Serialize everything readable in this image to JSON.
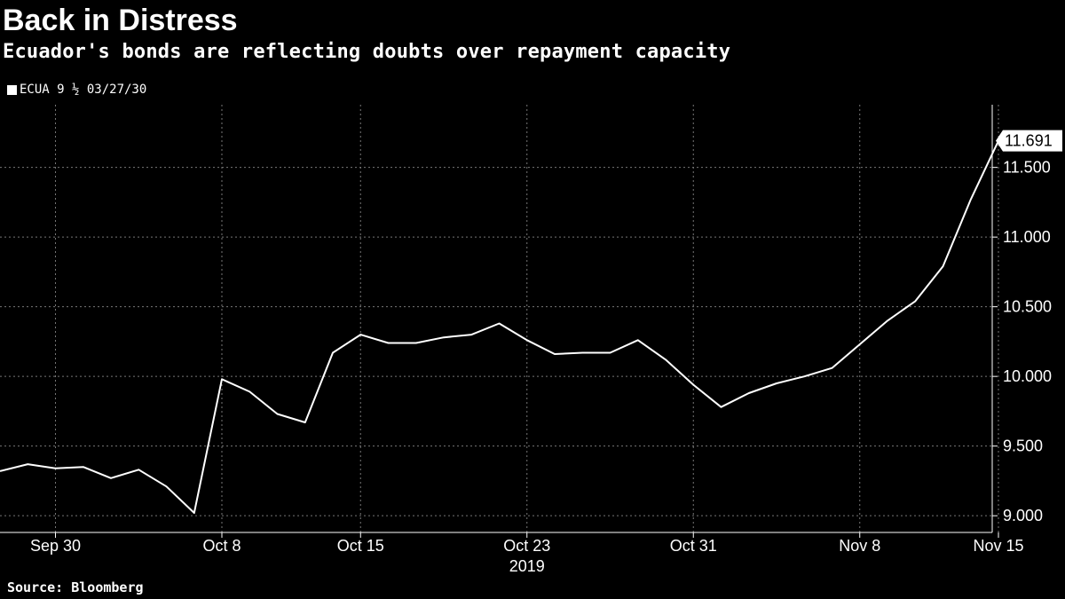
{
  "title": "Back in Distress",
  "subtitle": "Ecuador's bonds are reflecting doubts over repayment capacity",
  "source": "Source: Bloomberg",
  "colors": {
    "background": "#000000",
    "line": "#ffffff",
    "grid": "#777777"
  },
  "chart_data": {
    "type": "line",
    "title": "Back in Distress",
    "subtitle": "Ecuador's bonds are reflecting doubts over repayment capacity",
    "legend_position": "top-left",
    "grid": true,
    "year_label": "2019",
    "x_tick_labels": [
      "Sep 30",
      "Oct 8",
      "Oct 15",
      "Oct 23",
      "Oct 31",
      "Nov 8",
      "Nov 15"
    ],
    "y_tick_labels": [
      "9.000",
      "9.500",
      "10.000",
      "10.500",
      "11.000",
      "11.500"
    ],
    "ylim": [
      8.88,
      11.95
    ],
    "last_value_label": "11.691",
    "series": [
      {
        "name": "ECUA 9 ½ 03/27/30",
        "x": [
          "2019-09-26",
          "2019-09-27",
          "2019-09-30",
          "2019-10-01",
          "2019-10-02",
          "2019-10-03",
          "2019-10-04",
          "2019-10-07",
          "2019-10-08",
          "2019-10-09",
          "2019-10-10",
          "2019-10-11",
          "2019-10-14",
          "2019-10-15",
          "2019-10-16",
          "2019-10-17",
          "2019-10-18",
          "2019-10-21",
          "2019-10-22",
          "2019-10-23",
          "2019-10-24",
          "2019-10-25",
          "2019-10-28",
          "2019-10-29",
          "2019-10-30",
          "2019-10-31",
          "2019-11-01",
          "2019-11-04",
          "2019-11-05",
          "2019-11-06",
          "2019-11-07",
          "2019-11-08",
          "2019-11-11",
          "2019-11-12",
          "2019-11-13",
          "2019-11-14",
          "2019-11-15"
        ],
        "values": [
          9.32,
          9.37,
          9.34,
          9.35,
          9.27,
          9.33,
          9.21,
          9.02,
          9.98,
          9.89,
          9.73,
          9.67,
          10.17,
          10.3,
          10.24,
          10.24,
          10.28,
          10.3,
          10.38,
          10.26,
          10.16,
          10.17,
          10.17,
          10.26,
          10.12,
          9.94,
          9.78,
          9.88,
          9.95,
          10.0,
          10.06,
          10.23,
          10.4,
          10.54,
          10.79,
          11.27,
          11.691
        ]
      }
    ]
  }
}
